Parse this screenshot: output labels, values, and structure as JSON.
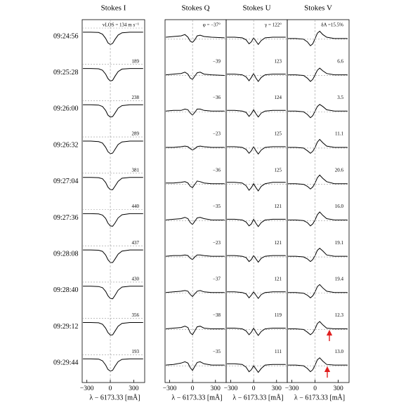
{
  "chart_data": [
    {
      "type": "line",
      "title": "Stokes I",
      "xlabel": "λ − 6173.33 [mÅ]",
      "row_labels": [
        "09:24:56",
        "09:25:28",
        "09:26:00",
        "09:26:32",
        "09:27:04",
        "09:27:36",
        "09:28:08",
        "09:28:40",
        "09:29:12",
        "09:29:44"
      ],
      "annotations": [
        "vLOS = 134 m s⁻¹",
        "189",
        "238",
        "289",
        "381",
        "440",
        "437",
        "430",
        "356",
        "193"
      ],
      "x": [
        -350,
        -250,
        -150,
        -100,
        -60,
        -30,
        0,
        30,
        60,
        100,
        150,
        250,
        420
      ],
      "xlim": [
        -360,
        440
      ],
      "xticks": [
        {
          "value": -300,
          "label": "−300"
        },
        0,
        300
      ],
      "ylim": [
        0.3,
        1.25
      ],
      "color": "#000000",
      "series": [
        {
          "values": [
            1,
            1,
            0.99,
            0.93,
            0.78,
            0.62,
            0.56,
            0.6,
            0.74,
            0.9,
            0.98,
            1,
            1
          ]
        },
        {
          "values": [
            1,
            1,
            0.99,
            0.94,
            0.8,
            0.64,
            0.55,
            0.58,
            0.72,
            0.89,
            0.98,
            1,
            1
          ]
        },
        {
          "values": [
            1,
            1,
            0.99,
            0.94,
            0.8,
            0.63,
            0.56,
            0.58,
            0.7,
            0.88,
            0.97,
            1,
            1
          ]
        },
        {
          "values": [
            1,
            1,
            0.98,
            0.93,
            0.78,
            0.62,
            0.55,
            0.57,
            0.7,
            0.88,
            0.97,
            1,
            1
          ]
        },
        {
          "values": [
            1,
            1,
            0.99,
            0.95,
            0.82,
            0.65,
            0.56,
            0.56,
            0.68,
            0.86,
            0.97,
            1,
            1
          ]
        },
        {
          "values": [
            1,
            1,
            0.99,
            0.95,
            0.83,
            0.66,
            0.56,
            0.55,
            0.66,
            0.85,
            0.96,
            1,
            1
          ]
        },
        {
          "values": [
            1,
            1,
            0.99,
            0.95,
            0.82,
            0.65,
            0.55,
            0.55,
            0.67,
            0.85,
            0.96,
            1,
            1
          ]
        },
        {
          "values": [
            1,
            1,
            0.99,
            0.95,
            0.82,
            0.66,
            0.56,
            0.55,
            0.67,
            0.86,
            0.97,
            1,
            1
          ]
        },
        {
          "values": [
            1,
            1,
            0.99,
            0.94,
            0.8,
            0.64,
            0.55,
            0.56,
            0.69,
            0.87,
            0.97,
            1,
            1
          ]
        },
        {
          "values": [
            1,
            1,
            0.99,
            0.93,
            0.78,
            0.62,
            0.56,
            0.59,
            0.73,
            0.9,
            0.98,
            1,
            1
          ]
        }
      ]
    },
    {
      "type": "line",
      "title": "Stokes Q",
      "xlabel": "λ − 6173.33 [mÅ]",
      "annotations": [
        "φ = −37°",
        "−39",
        "−36",
        "−23",
        "−36",
        "−35",
        "−23",
        "−37",
        "−38",
        "−35"
      ],
      "x": [
        -350,
        -250,
        -150,
        -100,
        -60,
        -30,
        0,
        30,
        60,
        100,
        150,
        250,
        420
      ],
      "xlim": [
        -360,
        440
      ],
      "xticks": [
        {
          "value": -300,
          "label": "−300"
        },
        0,
        300
      ],
      "ylim": [
        -1,
        1
      ],
      "color": "#000000",
      "series": [
        {
          "values": [
            0.1,
            0.15,
            0.2,
            0.3,
            0.1,
            -0.2,
            -0.3,
            -0.1,
            0.2,
            0.25,
            0.15,
            0.1,
            0.05
          ]
        },
        {
          "values": [
            0,
            0.05,
            0.1,
            0.2,
            0.05,
            -0.25,
            -0.35,
            -0.1,
            0.15,
            0.2,
            0.05,
            0,
            -0.05
          ]
        },
        {
          "values": [
            0,
            0.05,
            0.05,
            0.15,
            0.1,
            -0.15,
            -0.3,
            -0.1,
            0.15,
            0.15,
            0.05,
            0,
            0
          ]
        },
        {
          "values": [
            0,
            0,
            0.05,
            0.1,
            0.05,
            -0.1,
            -0.2,
            -0.1,
            0.05,
            0.1,
            0.05,
            0,
            0
          ]
        },
        {
          "values": [
            0.05,
            0.05,
            0.1,
            0.15,
            0.05,
            -0.2,
            -0.3,
            -0.05,
            0.2,
            0.15,
            0.05,
            0,
            0
          ]
        },
        {
          "values": [
            0,
            0.05,
            0.1,
            0.2,
            0.1,
            -0.2,
            -0.35,
            -0.1,
            0.15,
            0.2,
            0.1,
            0,
            0
          ]
        },
        {
          "values": [
            0,
            0.05,
            0.05,
            0.1,
            0.05,
            -0.15,
            -0.25,
            -0.05,
            0.1,
            0.1,
            0.05,
            0,
            0
          ]
        },
        {
          "values": [
            0,
            0.05,
            0.1,
            0.15,
            0.1,
            -0.15,
            -0.3,
            -0.1,
            0.1,
            0.15,
            0.05,
            0,
            0
          ]
        },
        {
          "values": [
            0,
            0.05,
            0.1,
            0.2,
            0.1,
            -0.3,
            -0.45,
            -0.15,
            0.15,
            0.2,
            0.05,
            0,
            0
          ]
        },
        {
          "values": [
            0,
            0.05,
            0.15,
            0.25,
            0.15,
            -0.2,
            -0.4,
            -0.1,
            0.2,
            0.25,
            0.1,
            0,
            0
          ]
        }
      ]
    },
    {
      "type": "line",
      "title": "Stokes U",
      "xlabel": "λ − 6173.33 [mÅ]",
      "annotations": [
        "γ = 122°",
        "123",
        "124",
        "125",
        "125",
        "121",
        "121",
        "121",
        "119",
        "111"
      ],
      "x": [
        -350,
        -250,
        -150,
        -100,
        -60,
        -30,
        0,
        30,
        60,
        100,
        150,
        250,
        420
      ],
      "xlim": [
        -360,
        440
      ],
      "xticks": [
        {
          "value": -300,
          "label": "−300"
        },
        0,
        300
      ],
      "ylim": [
        -1,
        1
      ],
      "color": "#000000",
      "series": [
        {
          "values": [
            0.1,
            0.1,
            0.05,
            -0.1,
            -0.4,
            -0.25,
            0.05,
            -0.2,
            -0.45,
            -0.15,
            0.05,
            0.1,
            0.1
          ]
        },
        {
          "values": [
            0.05,
            0.05,
            0,
            -0.15,
            -0.45,
            -0.2,
            0.1,
            -0.25,
            -0.5,
            -0.2,
            0,
            0.05,
            0.05
          ]
        },
        {
          "values": [
            0.05,
            0.05,
            0,
            -0.1,
            -0.4,
            -0.2,
            0.1,
            -0.2,
            -0.45,
            -0.15,
            0,
            0.05,
            0.05
          ]
        },
        {
          "values": [
            0.05,
            0.05,
            0,
            -0.15,
            -0.45,
            -0.25,
            0.05,
            -0.25,
            -0.5,
            -0.2,
            0,
            0.05,
            0.05
          ]
        },
        {
          "values": [
            0.1,
            0.1,
            0.05,
            -0.15,
            -0.5,
            -0.3,
            0,
            -0.3,
            -0.55,
            -0.2,
            0,
            0.1,
            0.1
          ]
        },
        {
          "values": [
            0.05,
            0.05,
            0,
            -0.15,
            -0.45,
            -0.3,
            0.05,
            -0.25,
            -0.5,
            -0.2,
            0,
            0.05,
            0.05
          ]
        },
        {
          "values": [
            0.05,
            0.05,
            0,
            -0.1,
            -0.4,
            -0.25,
            0.05,
            -0.2,
            -0.45,
            -0.15,
            0,
            0.05,
            0.05
          ]
        },
        {
          "values": [
            0.05,
            0.05,
            0,
            -0.1,
            -0.4,
            -0.2,
            0.05,
            -0.2,
            -0.45,
            -0.15,
            0,
            0.05,
            0.05
          ]
        },
        {
          "values": [
            0.05,
            0.05,
            0,
            -0.15,
            -0.45,
            -0.25,
            0.05,
            -0.25,
            -0.5,
            -0.2,
            0,
            0.05,
            0.05
          ]
        },
        {
          "values": [
            0.1,
            0.1,
            0.05,
            -0.15,
            -0.5,
            -0.35,
            -0.05,
            -0.3,
            -0.55,
            -0.25,
            0,
            0.05,
            0.05
          ]
        }
      ]
    },
    {
      "type": "line",
      "title": "Stokes V",
      "xlabel": "λ − 6173.33 [mÅ]",
      "annotations": [
        "δA =15.5%",
        "6.6",
        "3.5",
        "11.1",
        "20.6",
        "16.0",
        "19.1",
        "19.4",
        "12.3",
        "13.0"
      ],
      "x": [
        -350,
        -250,
        -150,
        -100,
        -60,
        -30,
        0,
        30,
        60,
        100,
        150,
        250,
        420
      ],
      "xlim": [
        -360,
        440
      ],
      "xticks": [
        {
          "value": -300,
          "label": "−300"
        },
        0,
        300
      ],
      "ylim": [
        -1,
        1
      ],
      "color": "#000000",
      "series": [
        {
          "values": [
            0,
            0,
            -0.05,
            -0.25,
            -0.55,
            -0.4,
            0,
            0.4,
            0.55,
            0.3,
            0.1,
            0,
            0
          ]
        },
        {
          "values": [
            0,
            0,
            -0.05,
            -0.25,
            -0.5,
            -0.35,
            0,
            0.35,
            0.5,
            0.3,
            0.1,
            0,
            0
          ]
        },
        {
          "values": [
            0,
            0,
            -0.05,
            -0.25,
            -0.5,
            -0.35,
            0,
            0.35,
            0.5,
            0.35,
            0.1,
            0,
            0
          ]
        },
        {
          "values": [
            0,
            0,
            -0.05,
            -0.25,
            -0.45,
            -0.3,
            0,
            0.4,
            0.6,
            0.35,
            0.1,
            0,
            0
          ]
        },
        {
          "values": [
            0,
            0,
            -0.05,
            -0.2,
            -0.4,
            -0.25,
            0.05,
            0.45,
            0.65,
            0.4,
            0.15,
            0,
            0
          ]
        },
        {
          "values": [
            0,
            0,
            -0.05,
            -0.2,
            -0.45,
            -0.3,
            0,
            0.4,
            0.6,
            0.35,
            0.1,
            0,
            0
          ]
        },
        {
          "values": [
            0,
            0,
            -0.05,
            -0.2,
            -0.4,
            -0.25,
            0.05,
            0.45,
            0.6,
            0.4,
            0.1,
            0,
            0
          ]
        },
        {
          "values": [
            0,
            0,
            -0.05,
            -0.2,
            -0.4,
            -0.25,
            0.05,
            0.45,
            0.6,
            0.35,
            0.1,
            0,
            0
          ]
        },
        {
          "values": [
            0,
            0,
            -0.05,
            -0.25,
            -0.45,
            -0.3,
            0,
            0.4,
            0.55,
            0.3,
            0.05,
            0,
            0
          ]
        },
        {
          "values": [
            0,
            0,
            -0.05,
            -0.25,
            -0.5,
            -0.35,
            0,
            0.4,
            0.55,
            0.3,
            0.05,
            0,
            0
          ]
        }
      ]
    }
  ]
}
